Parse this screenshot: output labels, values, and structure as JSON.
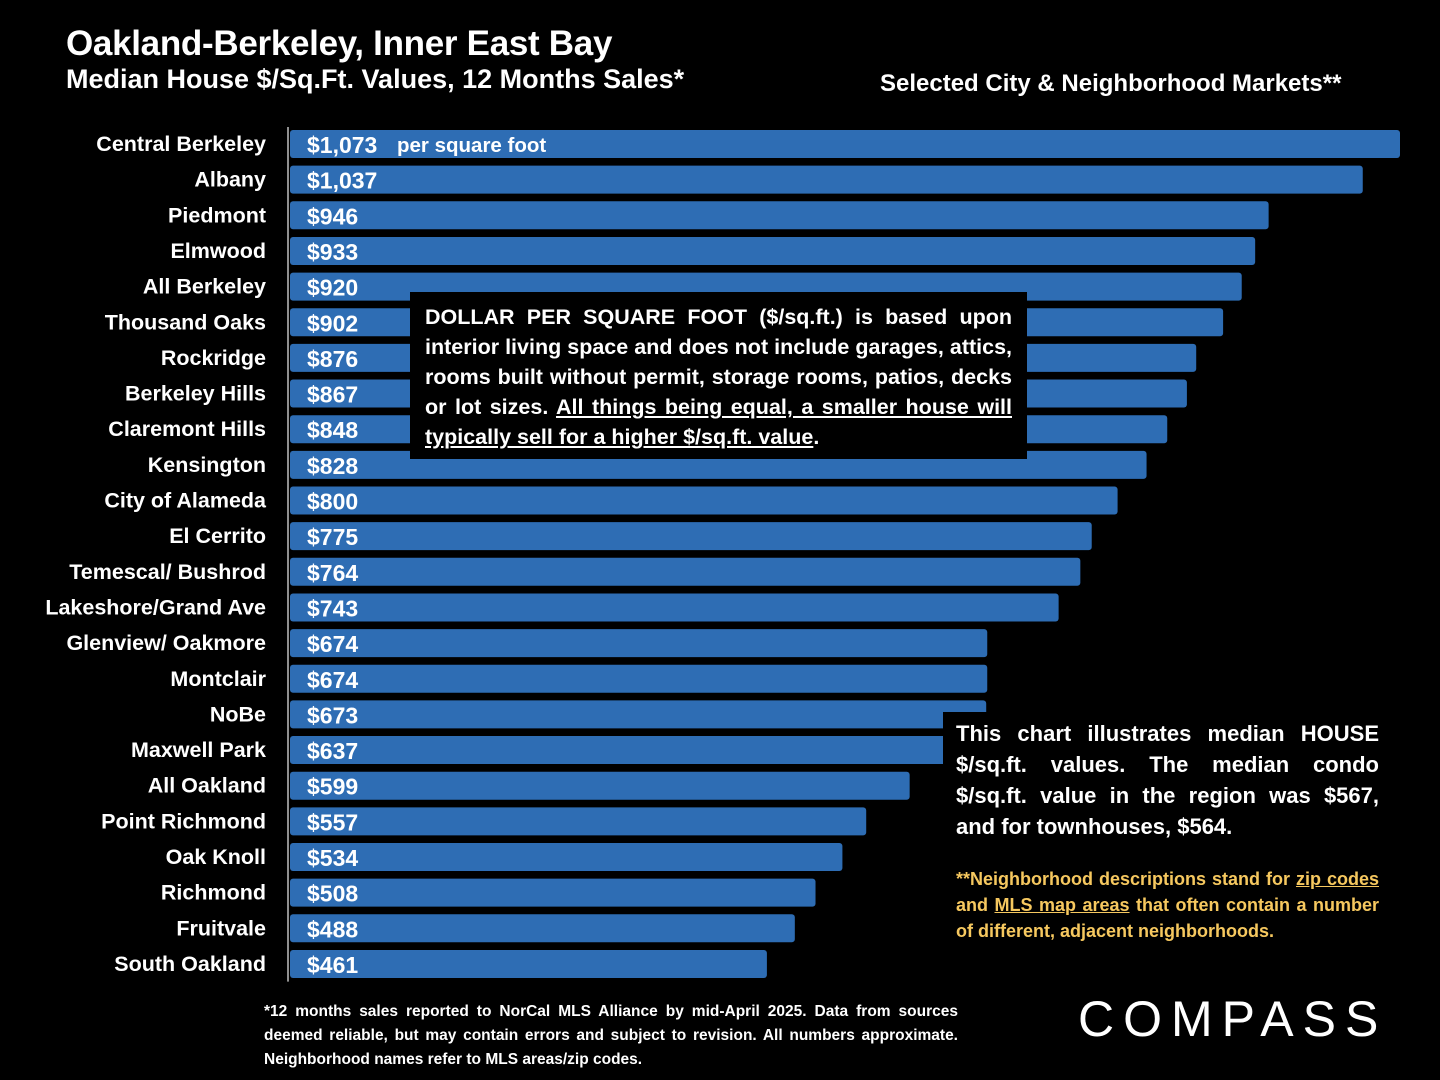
{
  "title": "Oakland-Berkeley, Inner East Bay",
  "subtitle": "Median House $/Sq.Ft. Values, 12 Months Sales*",
  "right_caption": "Selected City & Neighborhood Markets**",
  "chart_data": {
    "type": "bar",
    "orientation": "horizontal",
    "categories": [
      "Central Berkeley",
      "Albany",
      "Piedmont",
      "Elmwood",
      "All Berkeley",
      "Thousand Oaks",
      "Rockridge",
      "Berkeley Hills",
      "Claremont Hills",
      "Kensington",
      "City of Alameda",
      "El Cerrito",
      "Temescal/ Bushrod",
      "Lakeshore/Grand Ave",
      "Glenview/ Oakmore",
      "Montclair",
      "NoBe",
      "Maxwell Park",
      "All Oakland",
      "Point Richmond",
      "Oak Knoll",
      "Richmond",
      "Fruitvale",
      "South Oakland"
    ],
    "values": [
      1073,
      1037,
      946,
      933,
      920,
      902,
      876,
      867,
      848,
      828,
      800,
      775,
      764,
      743,
      674,
      674,
      673,
      637,
      599,
      557,
      534,
      508,
      488,
      461
    ],
    "value_labels": [
      "$1,073",
      "$1,037",
      "$946",
      "$933",
      "$920",
      "$902",
      "$876",
      "$867",
      "$848",
      "$828",
      "$800",
      "$775",
      "$764",
      "$743",
      "$674",
      "$674",
      "$673",
      "$637",
      "$599",
      "$557",
      "$534",
      "$508",
      "$488",
      "$461"
    ],
    "first_bar_suffix": "per square foot",
    "bar_color": "#2e6db4",
    "title": "Oakland-Berkeley, Inner East Bay",
    "subtitle": "Median House $/Sq.Ft. Values, 12 Months Sales*",
    "xlabel": "",
    "ylabel": "",
    "grid": false
  },
  "definition_box": {
    "text_plain": "DOLLAR PER SQUARE FOOT ($/sq.ft.) is based upon interior living space and does not include garages, attics, rooms built without permit, storage rooms, patios, decks or lot sizes. ",
    "text_underlined": "All things being equal, a smaller house will typically sell for a higher $/sq.ft. value",
    "text_end": "."
  },
  "note": {
    "main": "This chart illustrates median HOUSE $/sq.ft. values. The median condo $/sq.ft. value in the region was $567, and for townhouses, $564.",
    "gold_1": "**Neighborhood descriptions stand for ",
    "gold_link_1": "zip codes",
    "gold_2": " and ",
    "gold_link_2": "MLS map areas",
    "gold_3": " that often contain a number of different, adjacent neighborhoods.",
    "gold_color": "#f6c85f"
  },
  "footnote": "*12 months sales reported to NorCal MLS Alliance by mid-April 2025. Data from sources deemed reliable, but may contain errors and subject to revision. All numbers approximate. Neighborhood names refer to MLS areas/zip codes.",
  "logo": "COMPASS"
}
